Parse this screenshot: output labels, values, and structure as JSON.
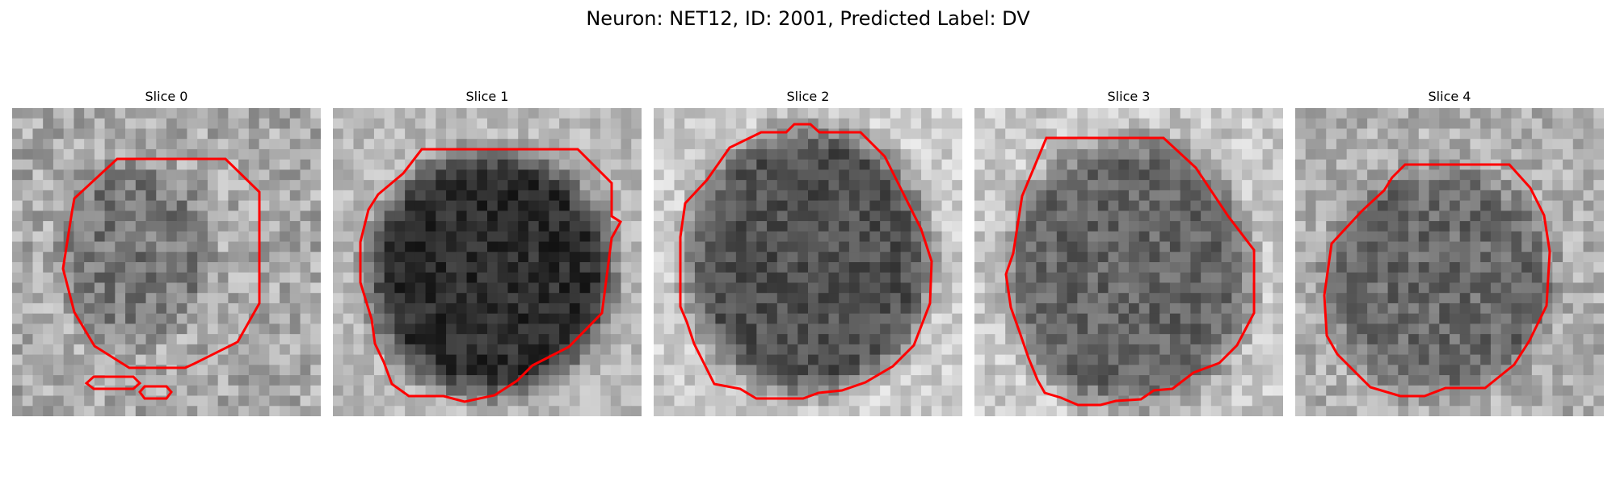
{
  "figure": {
    "title": "Neuron: NET12, ID: 2001, Predicted Label: DV"
  },
  "colors": {
    "contour": "#ff0000"
  },
  "panels": [
    {
      "title": "Slice 0"
    },
    {
      "title": "Slice 1"
    },
    {
      "title": "Slice 2"
    },
    {
      "title": "Slice 3"
    },
    {
      "title": "Slice 4"
    }
  ]
}
